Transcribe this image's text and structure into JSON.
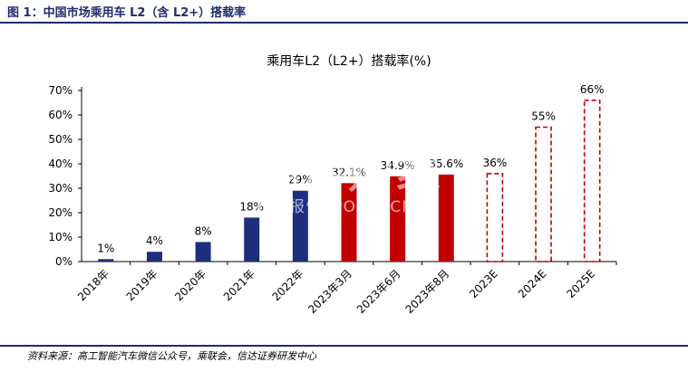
{
  "figure_title": "图 1：中国市场乘用车 L2（含 L2+）搭载率",
  "source_note": "资料来源：高工智能汽车微信公众号，乘联会，信达证券研发中心",
  "watermark": {
    "main": "心泮购家",
    "sub": "行业报告 IPOIPO.CN"
  },
  "colors": {
    "navy": "#1f2d7d",
    "red": "#c00000",
    "forecast_outline": "#c00000",
    "rule": "#1f2d6b"
  },
  "chart_data": {
    "type": "bar",
    "title": "乘用车L2（L2+）搭载率(%)",
    "xlabel": "",
    "ylabel": "",
    "ylim": [
      0,
      70
    ],
    "yticks": [
      "0%",
      "10%",
      "20%",
      "30%",
      "40%",
      "50%",
      "60%",
      "70%"
    ],
    "categories": [
      "2018年",
      "2019年",
      "2020年",
      "2021年",
      "2022年",
      "2023年3月",
      "2023年6月",
      "2023年8月",
      "2023E",
      "2024E",
      "2025E"
    ],
    "values": [
      1,
      4,
      8,
      18,
      29,
      32.1,
      34.9,
      35.6,
      36,
      55,
      66
    ],
    "labels": [
      "1%",
      "4%",
      "8%",
      "18%",
      "29%",
      "32.1%",
      "34.9%",
      "35.6%",
      "36%",
      "55%",
      "66%"
    ],
    "styles": [
      "navy",
      "navy",
      "navy",
      "navy",
      "navy",
      "red",
      "red",
      "red",
      "forecast",
      "forecast",
      "forecast"
    ],
    "grid": false,
    "legend": "none"
  }
}
